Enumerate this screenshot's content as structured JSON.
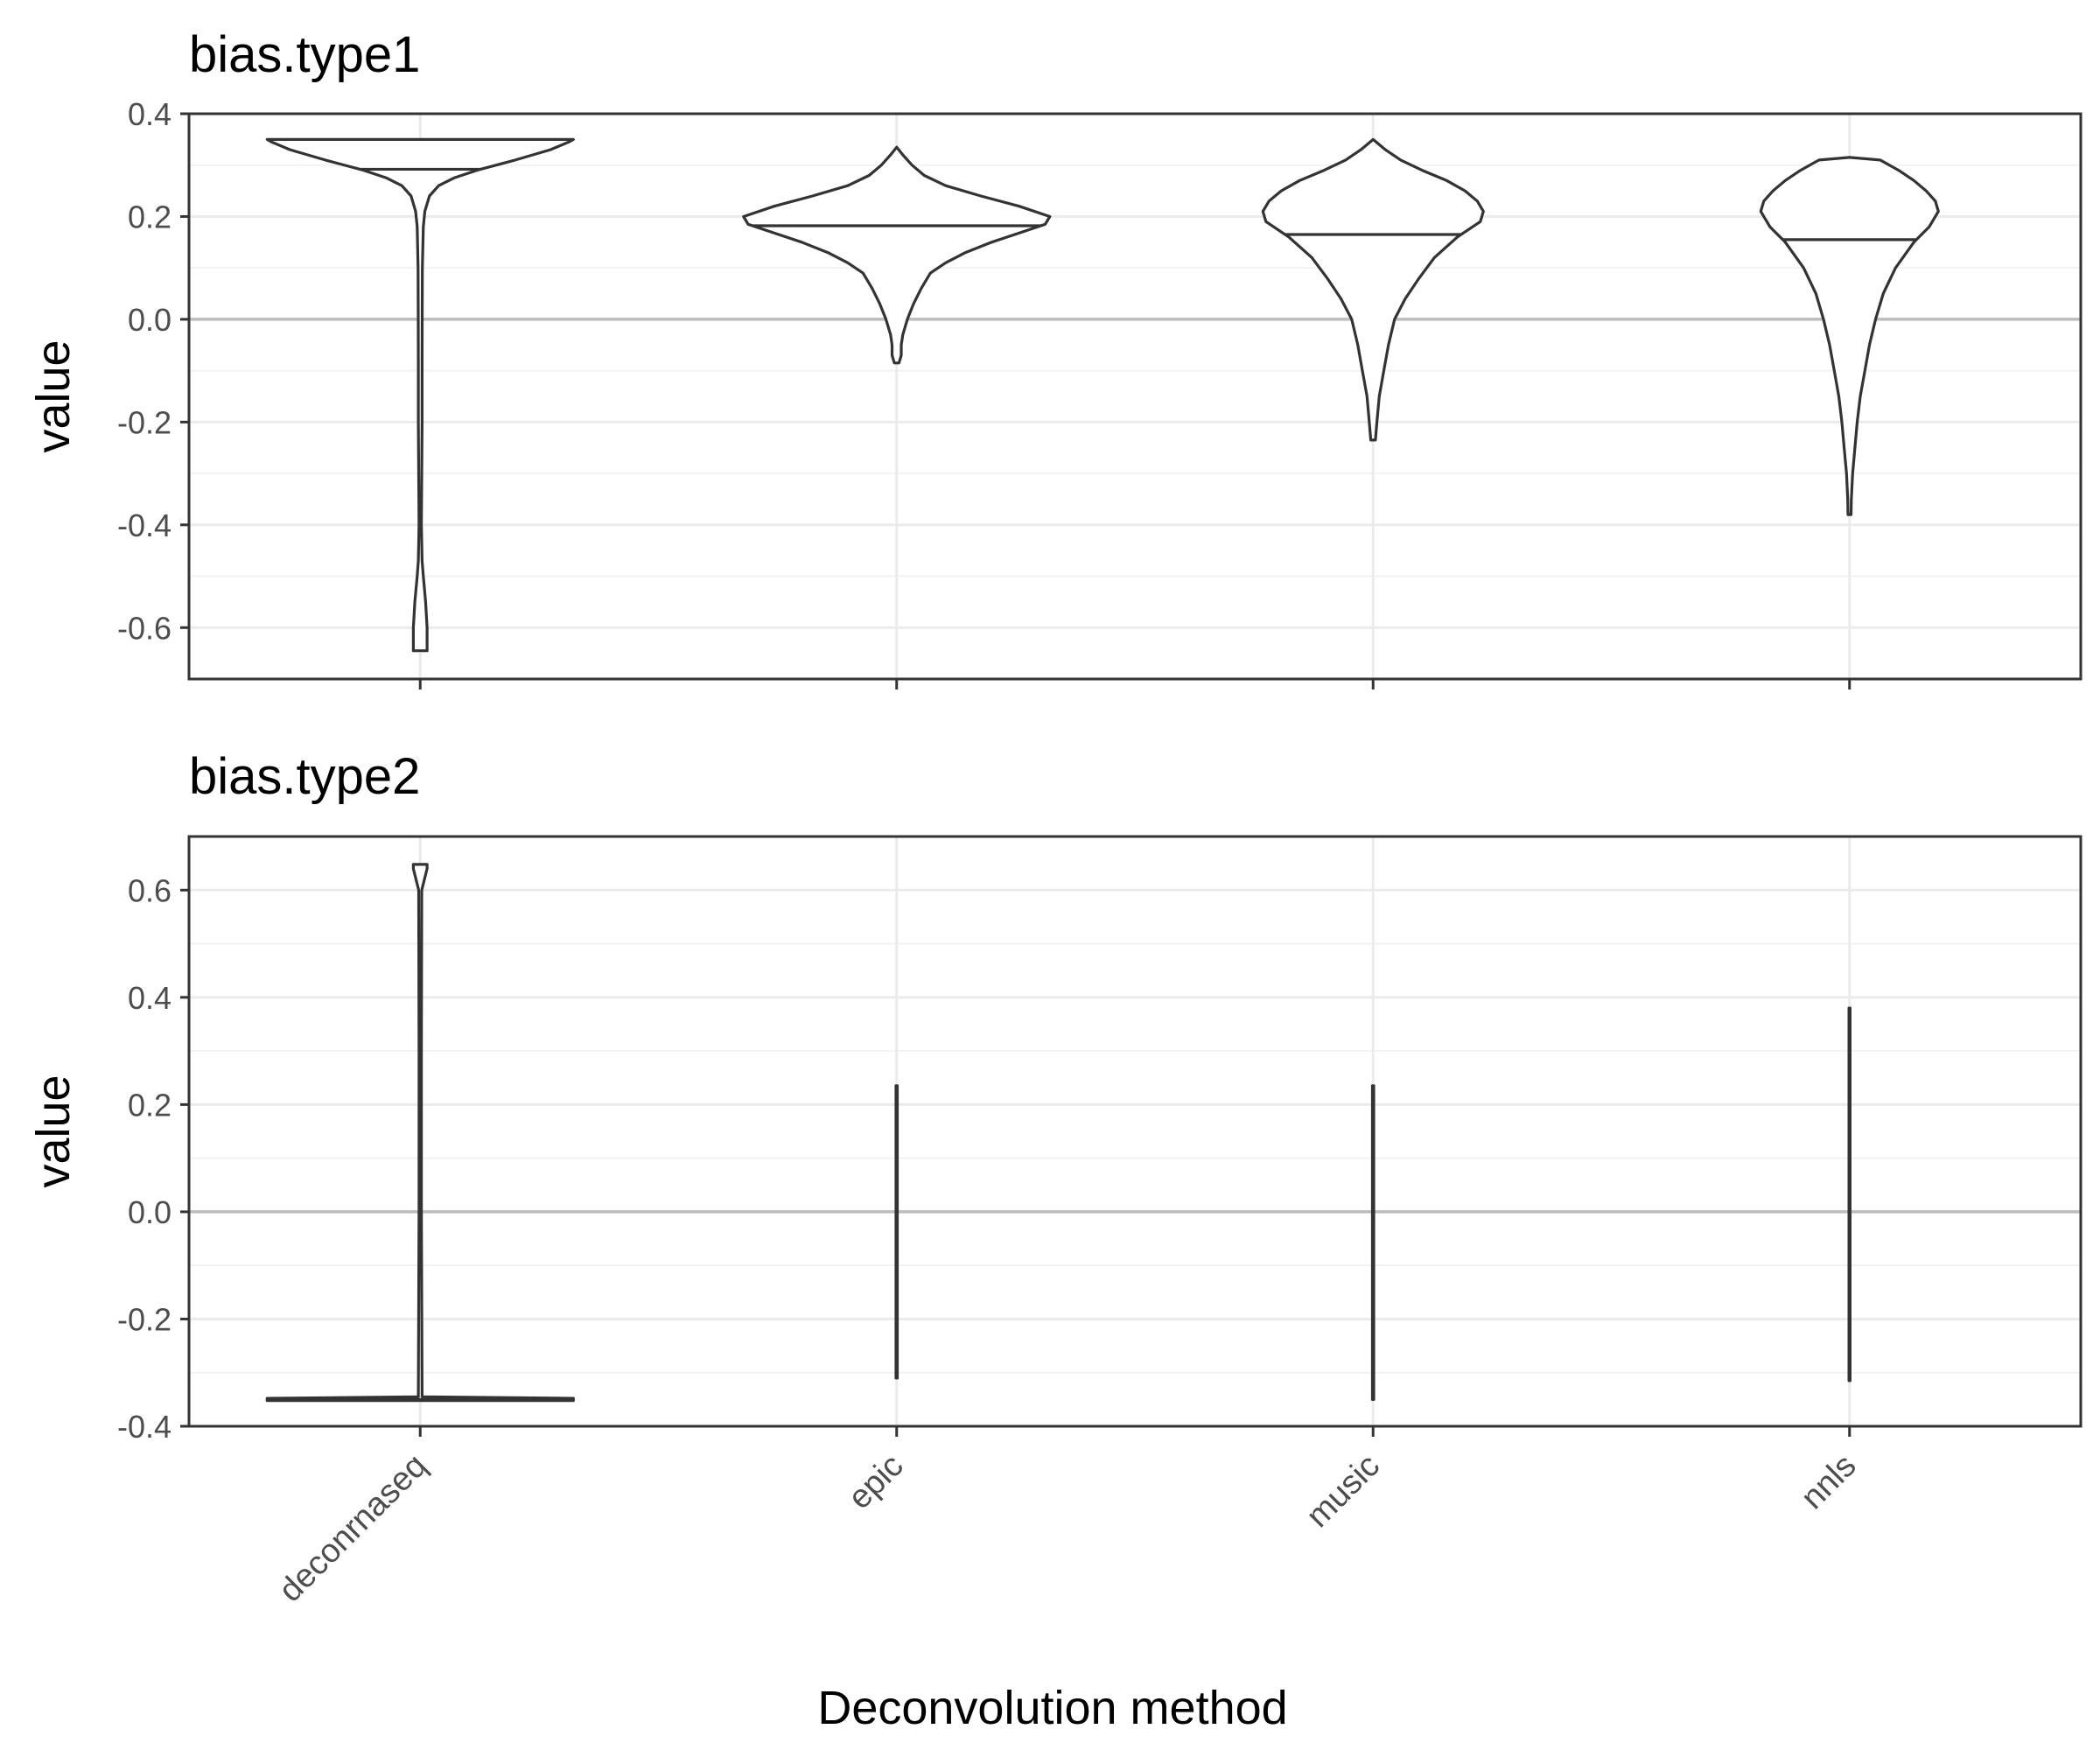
{
  "chart_data": {
    "type": "violin",
    "xlabel": "Deconvolution method",
    "categories": [
      "deconrnaseq",
      "epic",
      "music",
      "nnls"
    ],
    "panels": [
      {
        "title": "bias.type1",
        "ylabel": "value",
        "ylim": [
          -0.7,
          0.4
        ],
        "yticks": [
          {
            "value": 0.4,
            "label": "0.4"
          },
          {
            "value": 0.2,
            "label": "0.2"
          },
          {
            "value": 0.0,
            "label": "0.0"
          },
          {
            "value": -0.2,
            "label": "-0.2"
          },
          {
            "value": -0.4,
            "label": "-0.4"
          },
          {
            "value": -0.6,
            "label": "-0.6"
          }
        ],
        "reference_line": 0,
        "show_category_labels": false,
        "violins": [
          {
            "category": "deconrnaseq",
            "median": 0.292,
            "profile": [
              [
                -0.645,
                0.045
              ],
              [
                -0.6,
                0.045
              ],
              [
                -0.55,
                0.035
              ],
              [
                -0.5,
                0.02
              ],
              [
                -0.47,
                0.012
              ],
              [
                -0.4,
                0.008
              ],
              [
                -0.3,
                0.01
              ],
              [
                -0.2,
                0.012
              ],
              [
                -0.1,
                0.012
              ],
              [
                0.0,
                0.013
              ],
              [
                0.1,
                0.014
              ],
              [
                0.18,
                0.02
              ],
              [
                0.21,
                0.03
              ],
              [
                0.24,
                0.06
              ],
              [
                0.26,
                0.12
              ],
              [
                0.275,
                0.22
              ],
              [
                0.29,
                0.37
              ],
              [
                0.31,
                0.62
              ],
              [
                0.33,
                0.85
              ],
              [
                0.345,
                0.97
              ],
              [
                0.35,
                1.0
              ]
            ]
          },
          {
            "category": "epic",
            "median": 0.182,
            "profile": [
              [
                -0.085,
                0.015
              ],
              [
                -0.07,
                0.03
              ],
              [
                -0.05,
                0.03
              ],
              [
                -0.03,
                0.04
              ],
              [
                0.0,
                0.07
              ],
              [
                0.03,
                0.11
              ],
              [
                0.06,
                0.16
              ],
              [
                0.09,
                0.22
              ],
              [
                0.11,
                0.32
              ],
              [
                0.13,
                0.45
              ],
              [
                0.15,
                0.62
              ],
              [
                0.17,
                0.82
              ],
              [
                0.185,
                0.97
              ],
              [
                0.2,
                1.0
              ],
              [
                0.22,
                0.8
              ],
              [
                0.24,
                0.55
              ],
              [
                0.26,
                0.32
              ],
              [
                0.28,
                0.18
              ],
              [
                0.3,
                0.1
              ],
              [
                0.32,
                0.04
              ],
              [
                0.335,
                0.0
              ]
            ]
          },
          {
            "category": "music",
            "median": 0.165,
            "profile": [
              [
                -0.235,
                0.015
              ],
              [
                -0.2,
                0.025
              ],
              [
                -0.15,
                0.04
              ],
              [
                -0.1,
                0.07
              ],
              [
                -0.05,
                0.1
              ],
              [
                0.0,
                0.14
              ],
              [
                0.04,
                0.21
              ],
              [
                0.08,
                0.3
              ],
              [
                0.12,
                0.4
              ],
              [
                0.16,
                0.55
              ],
              [
                0.19,
                0.7
              ],
              [
                0.21,
                0.72
              ],
              [
                0.23,
                0.68
              ],
              [
                0.25,
                0.6
              ],
              [
                0.27,
                0.48
              ],
              [
                0.29,
                0.32
              ],
              [
                0.31,
                0.18
              ],
              [
                0.33,
                0.08
              ],
              [
                0.35,
                0.0
              ]
            ]
          },
          {
            "category": "nnls",
            "median": 0.155,
            "profile": [
              [
                -0.38,
                0.01
              ],
              [
                -0.35,
                0.012
              ],
              [
                -0.3,
                0.02
              ],
              [
                -0.25,
                0.035
              ],
              [
                -0.2,
                0.05
              ],
              [
                -0.15,
                0.07
              ],
              [
                -0.1,
                0.1
              ],
              [
                -0.05,
                0.13
              ],
              [
                0.0,
                0.17
              ],
              [
                0.05,
                0.22
              ],
              [
                0.1,
                0.3
              ],
              [
                0.15,
                0.42
              ],
              [
                0.18,
                0.52
              ],
              [
                0.21,
                0.58
              ],
              [
                0.23,
                0.56
              ],
              [
                0.25,
                0.5
              ],
              [
                0.27,
                0.42
              ],
              [
                0.29,
                0.32
              ],
              [
                0.31,
                0.2
              ],
              [
                0.315,
                0.0
              ]
            ]
          }
        ]
      },
      {
        "title": "bias.type2",
        "ylabel": "value",
        "ylim": [
          -0.4,
          0.7
        ],
        "yticks": [
          {
            "value": 0.6,
            "label": "0.6"
          },
          {
            "value": 0.4,
            "label": "0.4"
          },
          {
            "value": 0.2,
            "label": "0.2"
          },
          {
            "value": 0.0,
            "label": "0.0"
          },
          {
            "value": -0.2,
            "label": "-0.2"
          },
          {
            "value": -0.4,
            "label": "-0.4"
          }
        ],
        "reference_line": 0,
        "show_category_labels": true,
        "violins": [
          {
            "category": "deconrnaseq",
            "median": -0.35,
            "profile": [
              [
                -0.352,
                1.0
              ],
              [
                -0.348,
                1.0
              ],
              [
                -0.345,
                0.012
              ],
              [
                0.0,
                0.008
              ],
              [
                0.3,
                0.008
              ],
              [
                0.6,
                0.01
              ],
              [
                0.64,
                0.045
              ],
              [
                0.648,
                0.045
              ]
            ]
          },
          {
            "category": "epic",
            "median": null,
            "profile": [
              [
                -0.31,
                0.004
              ],
              [
                0.235,
                0.004
              ]
            ]
          },
          {
            "category": "music",
            "median": null,
            "profile": [
              [
                -0.35,
                0.004
              ],
              [
                0.235,
                0.004
              ]
            ]
          },
          {
            "category": "nnls",
            "median": null,
            "profile": [
              [
                -0.315,
                0.004
              ],
              [
                0.38,
                0.004
              ]
            ]
          }
        ]
      }
    ]
  }
}
